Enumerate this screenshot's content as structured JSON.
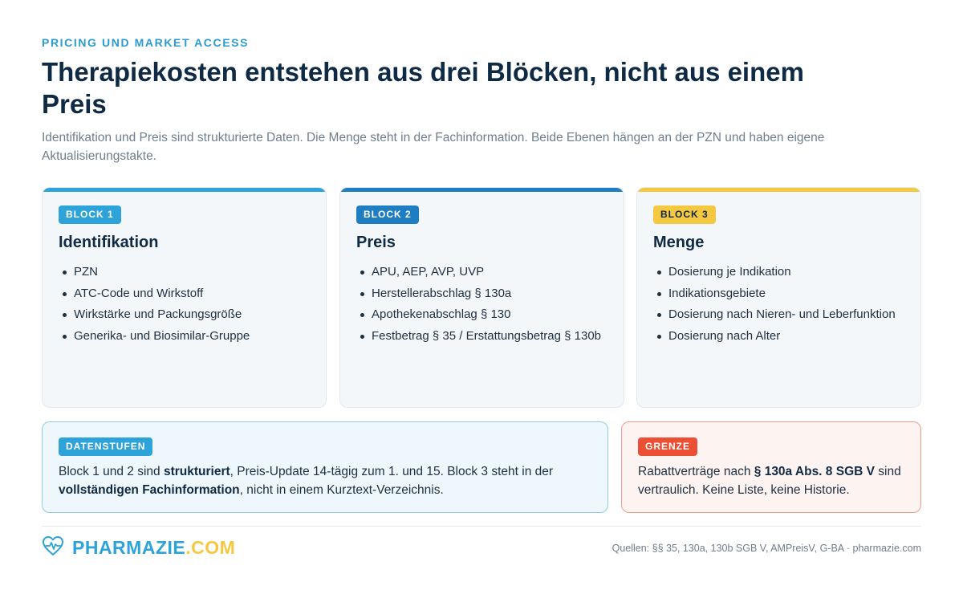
{
  "header": {
    "eyebrow": "PRICING UND MARKET ACCESS",
    "title": "Therapiekosten entstehen aus drei Blöcken, nicht aus einem Preis",
    "subtitle": "Identifikation und Preis sind strukturierte Daten. Die Menge steht in der Fachinformation. Beide Ebenen hängen an der PZN und haben eigene Aktualisierungstakte."
  },
  "blocks": [
    {
      "badge": "BLOCK 1",
      "title": "Identifikation",
      "items": [
        "PZN",
        "ATC-Code und Wirkstoff",
        "Wirkstärke und Packungsgröße",
        "Generika- und Biosimilar-Gruppe"
      ]
    },
    {
      "badge": "BLOCK 2",
      "title": "Preis",
      "items": [
        "APU, AEP, AVP, UVP",
        "Herstellerabschlag § 130a",
        "Apothekenabschlag § 130",
        "Festbetrag § 35 / Erstattungsbetrag § 130b"
      ]
    },
    {
      "badge": "BLOCK 3",
      "title": "Menge",
      "items": [
        "Dosierung je Indikation",
        "Indikationsgebiete",
        "Dosierung nach Nieren- und Leberfunktion",
        "Dosierung nach Alter"
      ]
    }
  ],
  "datenstufen": {
    "badge": "DATENSTUFEN",
    "part1": "Block 1 und 2 sind ",
    "bold1": "strukturiert",
    "part2": ", Preis-Update 14-tägig zum 1. und 15. Block 3 steht in der ",
    "bold2": "vollständigen Fachinformation",
    "part3": ", nicht in einem Kurztext-Verzeichnis."
  },
  "grenze": {
    "badge": "GRENZE",
    "part1": "Rabattverträge nach ",
    "bold1": "§ 130a Abs. 8 SGB V",
    "part2": " sind vertraulich. Keine Liste, keine Historie."
  },
  "footer": {
    "logo_part1": "PHARMAZIE",
    "logo_part2": ".COM",
    "logo_icon": "heart-pulse-icon",
    "source": "Quellen: §§ 35, 130a, 130b SGB V, AMPreisV, G-BA · pharmazie.com"
  },
  "colors": {
    "block1": "#2ea3d9",
    "block2": "#1e7ec1",
    "block3": "#f5c842",
    "grenze": "#ec4f33",
    "title": "#0f2a44"
  }
}
